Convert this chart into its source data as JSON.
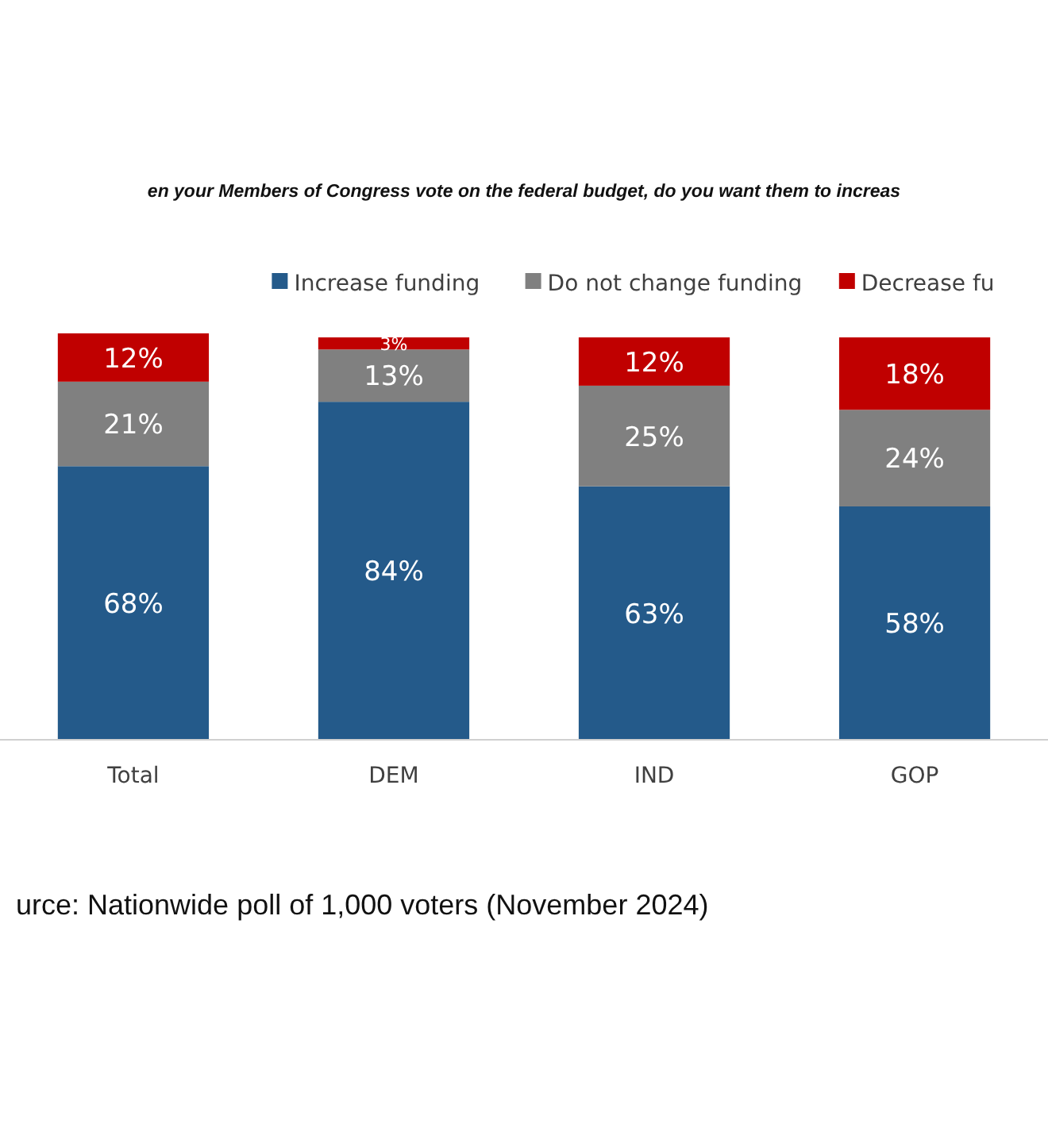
{
  "chart_data": {
    "type": "bar",
    "stacked": true,
    "legend": "top right",
    "title": "en your Members of Congress vote on the federal budget, do you want them to increas",
    "categories": [
      "Total",
      "DEM",
      "IND",
      "GOP"
    ],
    "series": [
      {
        "name": "Increase funding",
        "color": "#245a8a",
        "values": [
          68,
          84,
          63,
          58
        ],
        "value_labels": [
          "68%",
          "84%",
          "63%",
          "58%"
        ]
      },
      {
        "name": "Do not change funding",
        "color": "#808080",
        "values": [
          21,
          13,
          25,
          24
        ],
        "value_labels": [
          "21%",
          "13%",
          "25%",
          "24%"
        ]
      },
      {
        "name": "Decrease fu",
        "color": "#c00000",
        "values": [
          12,
          3,
          12,
          18
        ],
        "value_labels": [
          "12%",
          "3%",
          "12%",
          "18%"
        ]
      }
    ],
    "annotations": [
      "urce: Nationwide poll of 1,000 voters (November 2024)"
    ]
  }
}
